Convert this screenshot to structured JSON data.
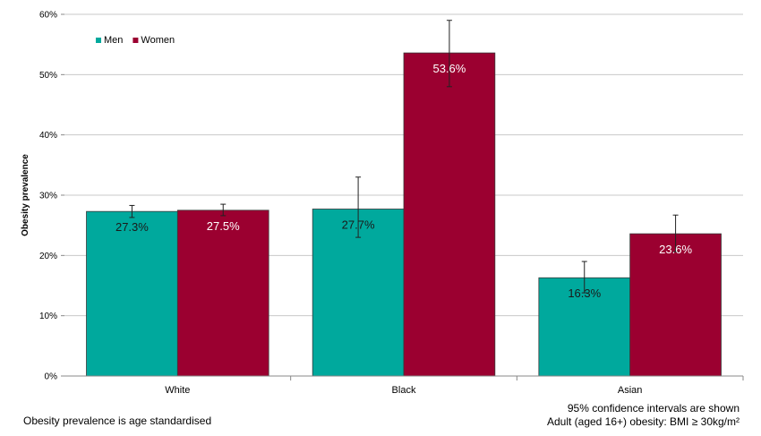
{
  "chart_data": {
    "type": "bar",
    "categories": [
      "White",
      "Black",
      "Asian"
    ],
    "series": [
      {
        "name": "Men",
        "color": "#00a99d",
        "values": [
          27.3,
          27.7,
          16.3
        ],
        "labels": [
          "27.3%",
          "27.7%",
          "16.3%"
        ],
        "ci_low": [
          26.3,
          23.0,
          13.8
        ],
        "ci_high": [
          28.3,
          33.0,
          19.0
        ]
      },
      {
        "name": "Women",
        "color": "#9b0030",
        "values": [
          27.5,
          53.6,
          23.6
        ],
        "labels": [
          "27.5%",
          "53.6%",
          "23.6%"
        ],
        "ci_low": [
          26.6,
          48.0,
          20.6
        ],
        "ci_high": [
          28.5,
          59.0,
          26.7
        ]
      }
    ],
    "ylabel": "Obesity prevalence",
    "xlabel": "",
    "ylim": [
      0,
      60
    ],
    "yticks": [
      "0%",
      "10%",
      "20%",
      "30%",
      "40%",
      "50%",
      "60%"
    ],
    "grid": true,
    "legend_position": "top-left"
  },
  "notes": {
    "left": "Obesity prevalence is age standardised",
    "right_line1": "95% confidence intervals are shown",
    "right_line2": "Adult (aged 16+) obesity: BMI ≥ 30kg/m²"
  }
}
